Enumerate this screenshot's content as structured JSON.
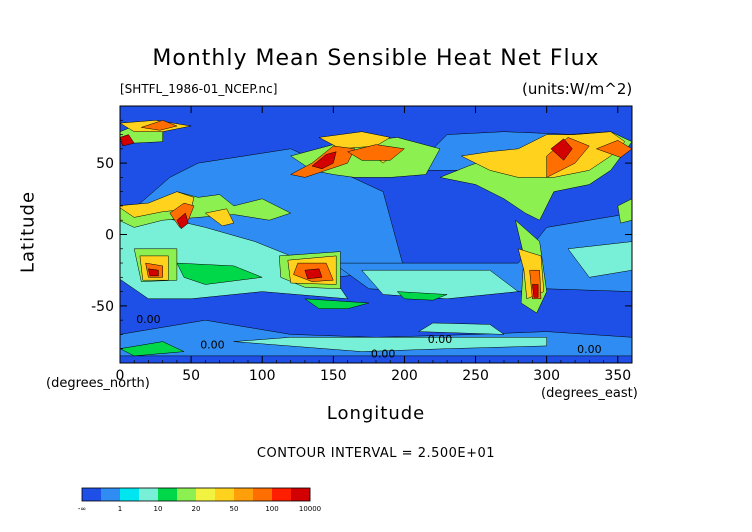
{
  "chart_data": {
    "type": "heatmap",
    "title": "Monthly Mean Sensible Heat Net Flux",
    "subtitle": "[SHTFL_1986-01_NCEP.nc]",
    "units": "(units:W/m^2)",
    "xlabel": "Longitude",
    "ylabel": "Latitude",
    "x_unit": "(degrees_east)",
    "y_unit": "(degrees_north)",
    "xlim": [
      0,
      360
    ],
    "ylim": [
      -90,
      90
    ],
    "x_ticks": [
      0,
      50,
      100,
      150,
      200,
      250,
      300,
      350
    ],
    "y_ticks": [
      -50,
      0,
      50
    ],
    "contour_interval": "CONTOUR INTERVAL = 2.500E+01",
    "colorbar": {
      "labels": [
        "-∞",
        "1",
        "10",
        "20",
        "50",
        "100",
        "10000"
      ],
      "colors": [
        "#1e4fe6",
        "#2f8cf2",
        "#00e6f0",
        "#78f0d8",
        "#00d84a",
        "#8cf050",
        "#f2f240",
        "#ffd21e",
        "#ffa00a",
        "#ff6e00",
        "#ff1e00",
        "#d20000"
      ]
    },
    "contour_labels": [
      {
        "text": "0.00",
        "lon": 20,
        "lat": -62
      },
      {
        "text": "0.00",
        "lon": 65,
        "lat": -80
      },
      {
        "text": "0.00",
        "lon": 185,
        "lat": -86
      },
      {
        "text": "0.00",
        "lon": 225,
        "lat": -76
      },
      {
        "text": "0.00",
        "lon": 330,
        "lat": -83
      }
    ],
    "regions": [
      {
        "v": 1,
        "pts": [
          [
            0,
            -12
          ],
          [
            -5,
            20
          ],
          [
            12,
            20
          ],
          [
            35,
            40
          ],
          [
            55,
            50
          ],
          [
            120,
            60
          ],
          [
            185,
            30
          ],
          [
            200,
            -25
          ],
          [
            150,
            -30
          ],
          [
            90,
            -35
          ],
          [
            50,
            -45
          ],
          [
            20,
            -45
          ],
          [
            0,
            -12
          ]
        ]
      },
      {
        "v": 1,
        "pts": [
          [
            150,
            -20
          ],
          [
            280,
            -20
          ],
          [
            300,
            5
          ],
          [
            360,
            15
          ],
          [
            360,
            -40
          ],
          [
            300,
            -38
          ],
          [
            255,
            -42
          ],
          [
            175,
            -38
          ]
        ]
      },
      {
        "v": 1,
        "pts": [
          [
            210,
            45
          ],
          [
            260,
            45
          ],
          [
            300,
            35
          ],
          [
            330,
            40
          ],
          [
            345,
            55
          ],
          [
            320,
            70
          ],
          [
            270,
            72
          ],
          [
            230,
            70
          ],
          [
            215,
            55
          ]
        ]
      },
      {
        "v": 1,
        "pts": [
          [
            0,
            -70
          ],
          [
            60,
            -60
          ],
          [
            120,
            -70
          ],
          [
            180,
            -72
          ],
          [
            250,
            -70
          ],
          [
            300,
            -68
          ],
          [
            360,
            -72
          ],
          [
            360,
            -85
          ],
          [
            0,
            -85
          ]
        ]
      },
      {
        "v": 3,
        "pts": [
          [
            -2,
            -30
          ],
          [
            -2,
            15
          ],
          [
            30,
            12
          ],
          [
            60,
            5
          ],
          [
            95,
            -5
          ],
          [
            120,
            -15
          ],
          [
            150,
            -30
          ],
          [
            160,
            -45
          ],
          [
            100,
            -40
          ],
          [
            50,
            -45
          ],
          [
            20,
            -45
          ]
        ]
      },
      {
        "v": 3,
        "pts": [
          [
            170,
            -25
          ],
          [
            260,
            -25
          ],
          [
            280,
            -40
          ],
          [
            230,
            -45
          ],
          [
            185,
            -42
          ]
        ]
      },
      {
        "v": 3,
        "pts": [
          [
            315,
            -10
          ],
          [
            360,
            -5
          ],
          [
            360,
            -25
          ],
          [
            330,
            -30
          ]
        ]
      },
      {
        "v": 3,
        "pts": [
          [
            80,
            -75
          ],
          [
            170,
            -82
          ],
          [
            230,
            -80
          ],
          [
            300,
            -78
          ],
          [
            300,
            -72
          ],
          [
            200,
            -72
          ],
          [
            120,
            -72
          ]
        ]
      },
      {
        "v": 3,
        "pts": [
          [
            210,
            -68
          ],
          [
            270,
            -70
          ],
          [
            260,
            -63
          ],
          [
            220,
            -62
          ]
        ]
      },
      {
        "v": 4,
        "pts": [
          [
            40,
            -20
          ],
          [
            80,
            -22
          ],
          [
            100,
            -30
          ],
          [
            60,
            -35
          ],
          [
            45,
            -30
          ]
        ]
      },
      {
        "v": 4,
        "pts": [
          [
            130,
            -45
          ],
          [
            175,
            -48
          ],
          [
            160,
            -52
          ],
          [
            140,
            -52
          ]
        ]
      },
      {
        "v": 4,
        "pts": [
          [
            195,
            -40
          ],
          [
            230,
            -42
          ],
          [
            220,
            -46
          ],
          [
            200,
            -45
          ]
        ]
      },
      {
        "v": 4,
        "pts": [
          [
            0,
            -80
          ],
          [
            30,
            -75
          ],
          [
            45,
            -82
          ],
          [
            10,
            -85
          ]
        ]
      },
      {
        "v": 5,
        "pts": [
          [
            -5,
            20
          ],
          [
            25,
            22
          ],
          [
            40,
            30
          ],
          [
            55,
            26
          ],
          [
            70,
            28
          ],
          [
            80,
            20
          ],
          [
            100,
            25
          ],
          [
            120,
            15
          ],
          [
            105,
            10
          ],
          [
            80,
            14
          ],
          [
            55,
            12
          ],
          [
            30,
            10
          ],
          [
            10,
            5
          ],
          [
            -5,
            12
          ]
        ]
      },
      {
        "v": 5,
        "pts": [
          [
            225,
            40
          ],
          [
            250,
            35
          ],
          [
            270,
            25
          ],
          [
            285,
            15
          ],
          [
            295,
            10
          ],
          [
            305,
            30
          ],
          [
            330,
            35
          ],
          [
            345,
            45
          ],
          [
            360,
            65
          ],
          [
            345,
            72
          ],
          [
            315,
            70
          ],
          [
            285,
            60
          ],
          [
            265,
            55
          ],
          [
            245,
            48
          ]
        ]
      },
      {
        "v": 5,
        "pts": [
          [
            120,
            55
          ],
          [
            150,
            63
          ],
          [
            195,
            68
          ],
          [
            225,
            60
          ],
          [
            215,
            42
          ],
          [
            190,
            40
          ],
          [
            165,
            40
          ],
          [
            150,
            42
          ],
          [
            135,
            45
          ]
        ]
      },
      {
        "v": 5,
        "pts": [
          [
            112,
            -15
          ],
          [
            155,
            -12
          ],
          [
            155,
            -38
          ],
          [
            130,
            -37
          ],
          [
            113,
            -30
          ]
        ]
      },
      {
        "v": 5,
        "pts": [
          [
            10,
            -10
          ],
          [
            40,
            -10
          ],
          [
            40,
            -32
          ],
          [
            15,
            -33
          ]
        ]
      },
      {
        "v": 5,
        "pts": [
          [
            278,
            10
          ],
          [
            295,
            -5
          ],
          [
            300,
            -40
          ],
          [
            293,
            -55
          ],
          [
            282,
            -48
          ],
          [
            284,
            -15
          ]
        ]
      },
      {
        "v": 5,
        "pts": [
          [
            -5,
            70
          ],
          [
            10,
            76
          ],
          [
            30,
            72
          ],
          [
            30,
            65
          ],
          [
            10,
            64
          ],
          [
            -5,
            66
          ]
        ]
      },
      {
        "v": 5,
        "pts": [
          [
            350,
            20
          ],
          [
            360,
            25
          ],
          [
            360,
            10
          ],
          [
            352,
            8
          ]
        ]
      },
      {
        "v": 7,
        "pts": [
          [
            -2,
            20
          ],
          [
            20,
            22
          ],
          [
            40,
            30
          ],
          [
            52,
            26
          ],
          [
            50,
            18
          ],
          [
            30,
            16
          ],
          [
            10,
            12
          ]
        ]
      },
      {
        "v": 7,
        "pts": [
          [
            0,
            78
          ],
          [
            25,
            80
          ],
          [
            50,
            76
          ],
          [
            30,
            72
          ],
          [
            10,
            72
          ]
        ]
      },
      {
        "v": 7,
        "pts": [
          [
            140,
            68
          ],
          [
            170,
            72
          ],
          [
            190,
            68
          ],
          [
            180,
            62
          ],
          [
            155,
            60
          ]
        ]
      },
      {
        "v": 7,
        "pts": [
          [
            175,
            58
          ],
          [
            195,
            58
          ],
          [
            185,
            50
          ]
        ]
      },
      {
        "v": 7,
        "pts": [
          [
            240,
            55
          ],
          [
            260,
            58
          ],
          [
            280,
            60
          ],
          [
            300,
            70
          ],
          [
            320,
            70
          ],
          [
            345,
            72
          ],
          [
            355,
            65
          ],
          [
            345,
            55
          ],
          [
            330,
            45
          ],
          [
            305,
            40
          ],
          [
            280,
            40
          ],
          [
            260,
            45
          ]
        ]
      },
      {
        "v": 7,
        "pts": [
          [
            118,
            -18
          ],
          [
            152,
            -15
          ],
          [
            152,
            -35
          ],
          [
            120,
            -34
          ]
        ]
      },
      {
        "v": 7,
        "pts": [
          [
            14,
            -15
          ],
          [
            34,
            -15
          ],
          [
            34,
            -32
          ],
          [
            16,
            -32
          ]
        ]
      },
      {
        "v": 7,
        "pts": [
          [
            280,
            -10
          ],
          [
            296,
            -15
          ],
          [
            298,
            -40
          ],
          [
            286,
            -45
          ],
          [
            284,
            -25
          ]
        ]
      },
      {
        "v": 7,
        "pts": [
          [
            60,
            15
          ],
          [
            75,
            18
          ],
          [
            80,
            8
          ],
          [
            72,
            6
          ]
        ]
      },
      {
        "v": 9,
        "pts": [
          [
            120,
            42
          ],
          [
            135,
            50
          ],
          [
            150,
            62
          ],
          [
            165,
            60
          ],
          [
            160,
            50
          ],
          [
            145,
            45
          ],
          [
            130,
            40
          ]
        ]
      },
      {
        "v": 9,
        "pts": [
          [
            160,
            58
          ],
          [
            180,
            63
          ],
          [
            200,
            60
          ],
          [
            190,
            52
          ],
          [
            170,
            52
          ]
        ]
      },
      {
        "v": 9,
        "pts": [
          [
            300,
            55
          ],
          [
            315,
            68
          ],
          [
            330,
            62
          ],
          [
            320,
            50
          ],
          [
            310,
            45
          ],
          [
            300,
            40
          ]
        ]
      },
      {
        "v": 9,
        "pts": [
          [
            335,
            60
          ],
          [
            350,
            66
          ],
          [
            360,
            60
          ],
          [
            352,
            54
          ]
        ]
      },
      {
        "v": 9,
        "pts": [
          [
            35,
            15
          ],
          [
            45,
            22
          ],
          [
            52,
            20
          ],
          [
            48,
            10
          ],
          [
            42,
            5
          ]
        ]
      },
      {
        "v": 9,
        "pts": [
          [
            15,
            75
          ],
          [
            30,
            80
          ],
          [
            40,
            76
          ],
          [
            28,
            73
          ]
        ]
      },
      {
        "v": 9,
        "pts": [
          [
            125,
            -20
          ],
          [
            145,
            -20
          ],
          [
            150,
            -32
          ],
          [
            135,
            -33
          ],
          [
            122,
            -28
          ]
        ]
      },
      {
        "v": 9,
        "pts": [
          [
            18,
            -20
          ],
          [
            30,
            -22
          ],
          [
            30,
            -30
          ],
          [
            20,
            -30
          ]
        ]
      },
      {
        "v": 9,
        "pts": [
          [
            288,
            -25
          ],
          [
            295,
            -25
          ],
          [
            296,
            -45
          ],
          [
            290,
            -45
          ]
        ]
      },
      {
        "v": 11,
        "pts": [
          [
            135,
            48
          ],
          [
            145,
            56
          ],
          [
            152,
            58
          ],
          [
            150,
            50
          ],
          [
            142,
            46
          ]
        ]
      },
      {
        "v": 11,
        "pts": [
          [
            303,
            60
          ],
          [
            312,
            67
          ],
          [
            318,
            60
          ],
          [
            312,
            52
          ]
        ]
      },
      {
        "v": 11,
        "pts": [
          [
            0,
            68
          ],
          [
            6,
            70
          ],
          [
            10,
            64
          ],
          [
            2,
            62
          ]
        ]
      },
      {
        "v": 11,
        "pts": [
          [
            40,
            10
          ],
          [
            46,
            15
          ],
          [
            48,
            8
          ],
          [
            43,
            4
          ]
        ]
      },
      {
        "v": 11,
        "pts": [
          [
            130,
            -25
          ],
          [
            140,
            -24
          ],
          [
            142,
            -30
          ],
          [
            132,
            -31
          ]
        ]
      },
      {
        "v": 11,
        "pts": [
          [
            20,
            -24
          ],
          [
            27,
            -25
          ],
          [
            27,
            -29
          ],
          [
            21,
            -29
          ]
        ]
      },
      {
        "v": 11,
        "pts": [
          [
            290,
            -35
          ],
          [
            294,
            -35
          ],
          [
            294,
            -44
          ],
          [
            291,
            -44
          ]
        ]
      }
    ]
  }
}
